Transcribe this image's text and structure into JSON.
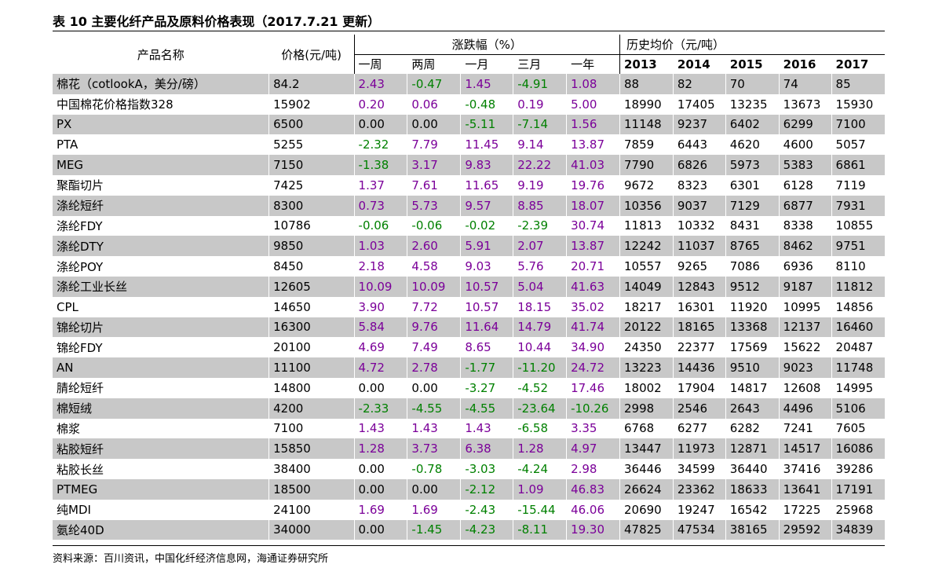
{
  "title": "表 10 主要化纤产品及原料价格表现（2017.7.21 更新）",
  "headers": {
    "product": "产品名称",
    "price": "价格(元/吨)",
    "change_group": "涨跌幅（%）",
    "history_group": "历史均价（元/吨）",
    "change_cols": [
      "一周",
      "两周",
      "一月",
      "三月",
      "一年"
    ],
    "history_cols": [
      "2013",
      "2014",
      "2015",
      "2016",
      "2017"
    ]
  },
  "colors": {
    "up": "#7b0099",
    "down": "#008000",
    "flat": "#000000",
    "shade": "#c8c8c8"
  },
  "rows": [
    {
      "name": "棉花（cotlookA，美分/磅）",
      "price": "84.2",
      "changes": [
        "2.43",
        "-0.47",
        "1.45",
        "-4.91",
        "1.08"
      ],
      "history": [
        "88",
        "82",
        "70",
        "74",
        "85"
      ]
    },
    {
      "name": "中国棉花价格指数328",
      "price": "15902",
      "changes": [
        "0.20",
        "0.06",
        "-0.48",
        "0.19",
        "5.00"
      ],
      "history": [
        "18990",
        "17405",
        "13235",
        "13673",
        "15930"
      ]
    },
    {
      "name": "PX",
      "price": "6500",
      "changes": [
        "0.00",
        "0.00",
        "-5.11",
        "-7.14",
        "1.56"
      ],
      "history": [
        "11148",
        "9237",
        "6402",
        "6299",
        "7100"
      ]
    },
    {
      "name": "PTA",
      "price": "5255",
      "changes": [
        "-2.32",
        "7.79",
        "11.45",
        "9.14",
        "13.87"
      ],
      "history": [
        "7859",
        "6443",
        "4620",
        "4600",
        "5057"
      ]
    },
    {
      "name": "MEG",
      "price": "7150",
      "changes": [
        "-1.38",
        "3.17",
        "9.83",
        "22.22",
        "41.03"
      ],
      "history": [
        "7790",
        "6826",
        "5973",
        "5383",
        "6861"
      ]
    },
    {
      "name": "聚酯切片",
      "price": "7425",
      "changes": [
        "1.37",
        "7.61",
        "11.65",
        "9.19",
        "19.76"
      ],
      "history": [
        "9672",
        "8323",
        "6301",
        "6128",
        "7119"
      ]
    },
    {
      "name": "涤纶短纤",
      "price": "8300",
      "changes": [
        "0.73",
        "5.73",
        "9.57",
        "8.85",
        "18.07"
      ],
      "history": [
        "10356",
        "9037",
        "7129",
        "6877",
        "7931"
      ]
    },
    {
      "name": "涤纶FDY",
      "price": "10786",
      "changes": [
        "-0.06",
        "-0.06",
        "-0.02",
        "-2.39",
        "30.74"
      ],
      "history": [
        "11813",
        "10332",
        "8431",
        "8338",
        "10855"
      ]
    },
    {
      "name": "涤纶DTY",
      "price": "9850",
      "changes": [
        "1.03",
        "2.60",
        "5.91",
        "2.07",
        "13.87"
      ],
      "history": [
        "12242",
        "11037",
        "8765",
        "8462",
        "9751"
      ]
    },
    {
      "name": "涤纶POY",
      "price": "8450",
      "changes": [
        "2.18",
        "4.58",
        "9.03",
        "5.76",
        "20.71"
      ],
      "history": [
        "10557",
        "9265",
        "7086",
        "6936",
        "8110"
      ]
    },
    {
      "name": "涤纶工业长丝",
      "price": "12605",
      "changes": [
        "10.09",
        "10.09",
        "10.57",
        "5.04",
        "41.63"
      ],
      "history": [
        "14049",
        "12843",
        "9512",
        "9187",
        "11812"
      ]
    },
    {
      "name": "CPL",
      "price": "14650",
      "changes": [
        "3.90",
        "7.72",
        "10.57",
        "18.15",
        "35.02"
      ],
      "history": [
        "18217",
        "16301",
        "11920",
        "10995",
        "14856"
      ]
    },
    {
      "name": "锦纶切片",
      "price": "16300",
      "changes": [
        "5.84",
        "9.76",
        "11.64",
        "14.79",
        "41.74"
      ],
      "history": [
        "20122",
        "18165",
        "13368",
        "12137",
        "16460"
      ]
    },
    {
      "name": "锦纶FDY",
      "price": "20100",
      "changes": [
        "4.69",
        "7.49",
        "8.65",
        "10.44",
        "34.90"
      ],
      "history": [
        "24350",
        "22377",
        "17569",
        "15622",
        "20487"
      ]
    },
    {
      "name": "AN",
      "price": "11100",
      "changes": [
        "4.72",
        "2.78",
        "-1.77",
        "-11.20",
        "24.72"
      ],
      "history": [
        "13223",
        "14436",
        "9510",
        "9023",
        "11748"
      ]
    },
    {
      "name": "腈纶短纤",
      "price": "14800",
      "changes": [
        "0.00",
        "0.00",
        "-3.27",
        "-4.52",
        "17.46"
      ],
      "history": [
        "18002",
        "17904",
        "14817",
        "12608",
        "14995"
      ]
    },
    {
      "name": "棉短绒",
      "price": "4200",
      "changes": [
        "-2.33",
        "-4.55",
        "-4.55",
        "-23.64",
        "-10.26"
      ],
      "history": [
        "2998",
        "2546",
        "2643",
        "4496",
        "5106"
      ]
    },
    {
      "name": "棉浆",
      "price": "7100",
      "changes": [
        "1.43",
        "1.43",
        "1.43",
        "-6.58",
        "3.35"
      ],
      "history": [
        "6768",
        "6277",
        "6282",
        "7241",
        "7605"
      ]
    },
    {
      "name": "粘胶短纤",
      "price": "15850",
      "changes": [
        "1.28",
        "3.73",
        "6.38",
        "1.28",
        "4.97"
      ],
      "history": [
        "13447",
        "11973",
        "12871",
        "14517",
        "16086"
      ]
    },
    {
      "name": "粘胶长丝",
      "price": "38400",
      "changes": [
        "0.00",
        "-0.78",
        "-3.03",
        "-4.24",
        "2.98"
      ],
      "history": [
        "36446",
        "34599",
        "36440",
        "37416",
        "39286"
      ]
    },
    {
      "name": "PTMEG",
      "price": "18500",
      "changes": [
        "0.00",
        "0.00",
        "-2.12",
        "1.09",
        "46.83"
      ],
      "history": [
        "26624",
        "23362",
        "18633",
        "13641",
        "17191"
      ]
    },
    {
      "name": "纯MDI",
      "price": "24100",
      "changes": [
        "1.69",
        "1.69",
        "-2.43",
        "-15.44",
        "46.06"
      ],
      "history": [
        "20690",
        "19247",
        "16542",
        "17225",
        "25968"
      ]
    },
    {
      "name": "氨纶40D",
      "price": "34000",
      "changes": [
        "0.00",
        "-1.45",
        "-4.23",
        "-8.11",
        "19.30"
      ],
      "history": [
        "47825",
        "47534",
        "38165",
        "29592",
        "34839"
      ]
    }
  ],
  "source": "资料来源：百川资讯，中国化纤经济信息网，海通证券研究所"
}
